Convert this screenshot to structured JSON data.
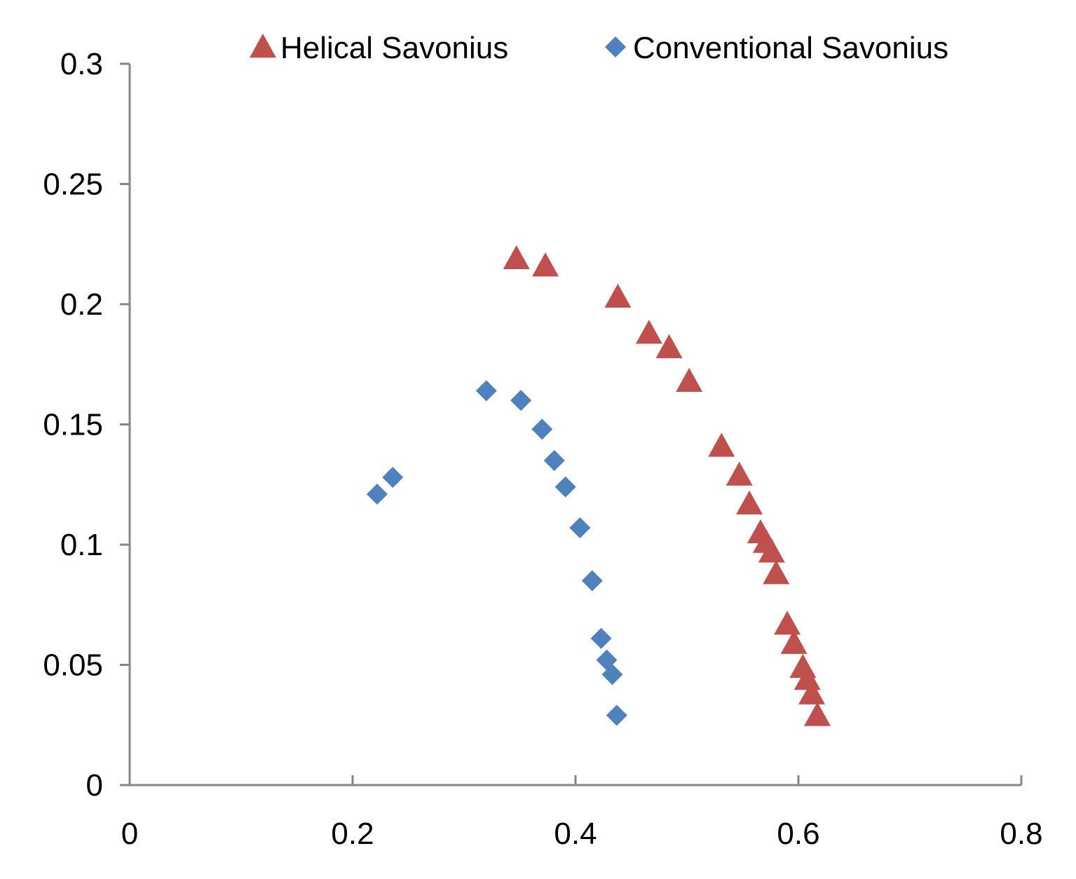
{
  "chart_data": {
    "type": "scatter",
    "title": "",
    "xlabel": "",
    "ylabel": "",
    "xlim": [
      0,
      0.8
    ],
    "ylim": [
      0,
      0.3
    ],
    "x_ticks": [
      "0",
      "0.2",
      "0.4",
      "0.6",
      "0.8"
    ],
    "y_ticks": [
      "0",
      "0.05",
      "0.1",
      "0.15",
      "0.2",
      "0.25",
      "0.3"
    ],
    "grid": false,
    "legend_position": "top",
    "series": [
      {
        "name": "Helical Savonius",
        "marker": "triangle",
        "color": "#c0504d",
        "points": [
          {
            "x": 0.347,
            "y": 0.219
          },
          {
            "x": 0.373,
            "y": 0.216
          },
          {
            "x": 0.438,
            "y": 0.203
          },
          {
            "x": 0.466,
            "y": 0.188
          },
          {
            "x": 0.484,
            "y": 0.182
          },
          {
            "x": 0.502,
            "y": 0.168
          },
          {
            "x": 0.531,
            "y": 0.141
          },
          {
            "x": 0.547,
            "y": 0.129
          },
          {
            "x": 0.556,
            "y": 0.117
          },
          {
            "x": 0.566,
            "y": 0.105
          },
          {
            "x": 0.571,
            "y": 0.101
          },
          {
            "x": 0.576,
            "y": 0.097
          },
          {
            "x": 0.58,
            "y": 0.088
          },
          {
            "x": 0.59,
            "y": 0.067
          },
          {
            "x": 0.596,
            "y": 0.059
          },
          {
            "x": 0.604,
            "y": 0.049
          },
          {
            "x": 0.608,
            "y": 0.044
          },
          {
            "x": 0.612,
            "y": 0.038
          },
          {
            "x": 0.617,
            "y": 0.029
          }
        ]
      },
      {
        "name": "Conventional Savonius",
        "marker": "diamond",
        "color": "#4f81bd",
        "points": [
          {
            "x": 0.222,
            "y": 0.121
          },
          {
            "x": 0.236,
            "y": 0.128
          },
          {
            "x": 0.32,
            "y": 0.164
          },
          {
            "x": 0.351,
            "y": 0.16
          },
          {
            "x": 0.37,
            "y": 0.148
          },
          {
            "x": 0.381,
            "y": 0.135
          },
          {
            "x": 0.391,
            "y": 0.124
          },
          {
            "x": 0.404,
            "y": 0.107
          },
          {
            "x": 0.415,
            "y": 0.085
          },
          {
            "x": 0.423,
            "y": 0.061
          },
          {
            "x": 0.428,
            "y": 0.052
          },
          {
            "x": 0.433,
            "y": 0.046
          },
          {
            "x": 0.437,
            "y": 0.029
          }
        ]
      }
    ]
  }
}
